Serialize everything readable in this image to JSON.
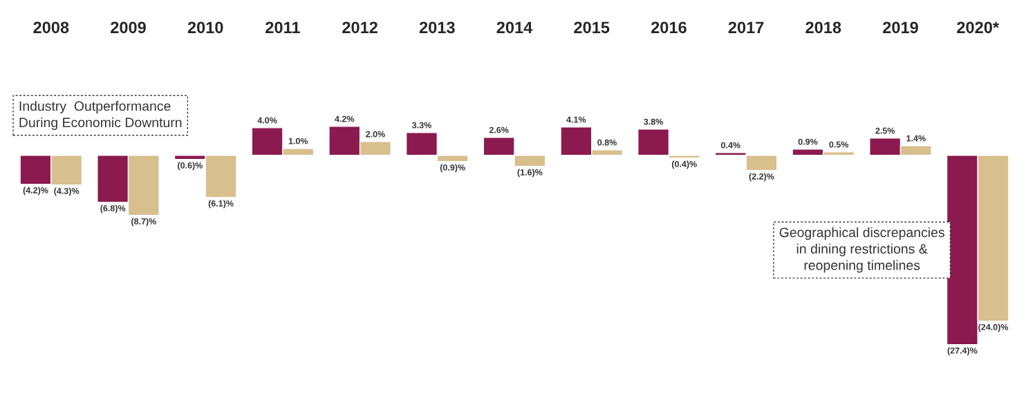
{
  "chart_data": {
    "type": "bar",
    "categories": [
      "2008",
      "2009",
      "2010",
      "2011",
      "2012",
      "2013",
      "2014",
      "2015",
      "2016",
      "2017",
      "2018",
      "2019",
      "2020*"
    ],
    "series": [
      {
        "color": "#8b1a4e",
        "values": [
          -4.2,
          -6.8,
          -0.6,
          4.0,
          4.2,
          3.3,
          2.6,
          4.1,
          3.8,
          0.4,
          0.9,
          2.5,
          -27.4
        ],
        "value_labels": [
          "(4.2)%",
          "(6.8)%",
          "(0.6)%",
          "4.0%",
          "4.2%",
          "3.3%",
          "2.6%",
          "4.1%",
          "3.8%",
          "0.4%",
          "0.9%",
          "2.5%",
          "(27.4)%"
        ]
      },
      {
        "color": "#d8bf8e",
        "values": [
          -4.3,
          -8.7,
          -6.1,
          1.0,
          2.0,
          -0.9,
          -1.6,
          0.8,
          -0.4,
          -2.2,
          0.5,
          1.4,
          -24.0
        ],
        "value_labels": [
          "(4.3)%",
          "(8.7)%",
          "(6.1)%",
          "1.0%",
          "2.0%",
          "(0.9)%",
          "(1.6)%",
          "0.8%",
          "(0.4)%",
          "(2.2)%",
          "0.5%",
          "1.4%",
          "(24.0)%"
        ]
      }
    ],
    "annotations": [
      "Industry  Outperformance\nDuring Economic Downturn",
      "Geographical discrepancies\nin dining restrictions &\nreopening timelines"
    ],
    "grid": false
  }
}
